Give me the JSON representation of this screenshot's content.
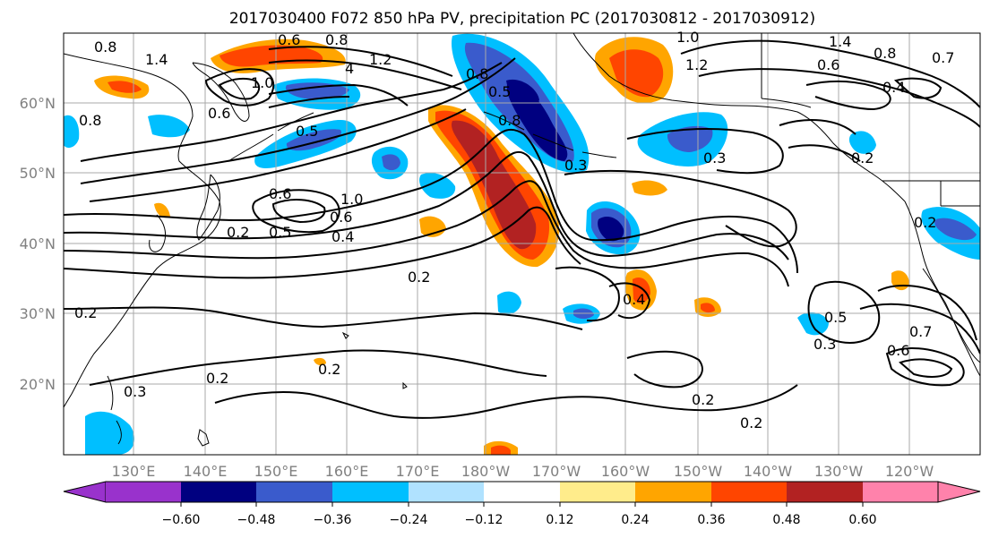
{
  "title": "2017030400 F072 850 hPa PV, precipitation PC (2017030812 - 2017030912)",
  "colors": {
    "lt_-0.60": "#9932CC",
    "-0.60_-0.48": "#000080",
    "-0.48_-0.36": "#3A5BCC",
    "-0.36_-0.24": "#00BFFF",
    "-0.24_-0.12": "#B0E2FF",
    "-0.12_0.12": "#FFFFFF",
    "0.12_0.24": "#FFEC8B",
    "0.24_0.36": "#FFA500",
    "0.36_0.48": "#FF4500",
    "0.48_0.60": "#B22222",
    "gt_0.60": "#FF82AB"
  },
  "chart_data": {
    "type": "heatmap",
    "lat_labels": [
      "60°N",
      "50°N",
      "40°N",
      "30°N",
      "20°N"
    ],
    "lon_labels": [
      "130°E",
      "140°E",
      "150°E",
      "160°E",
      "170°E",
      "180°W",
      "170°W",
      "160°W",
      "150°W",
      "140°W",
      "130°W",
      "120°W"
    ],
    "colorbar_ticks": [
      "−0.60",
      "−0.48",
      "−0.36",
      "−0.24",
      "−0.12",
      "0.12",
      "0.24",
      "0.36",
      "0.48",
      "0.60"
    ],
    "colorbar_levels": [
      -0.6,
      -0.48,
      -0.36,
      -0.24,
      -0.12,
      0.12,
      0.24,
      0.36,
      0.48,
      0.6
    ],
    "contour_labels": [
      "0.8",
      "1.4",
      "0.6",
      "0.8",
      "1.2",
      "4",
      "1.0",
      "1.0",
      "1.2",
      "1.4",
      "0.6",
      "0.8",
      "0.7",
      "0.4",
      "0.8",
      "0.6",
      "0.5",
      "0.5",
      "0.8",
      "0.8",
      "0.2",
      "0.3",
      "0.6",
      "1.0",
      "0.5",
      "0.6",
      "0.2",
      "0.4",
      "0.2",
      "0.3",
      "0.4",
      "0.5",
      "0.3",
      "0.7",
      "0.6",
      "0.2",
      "0.2",
      "0.2",
      "0.3",
      "0.2",
      "0.2",
      "0.2"
    ]
  }
}
